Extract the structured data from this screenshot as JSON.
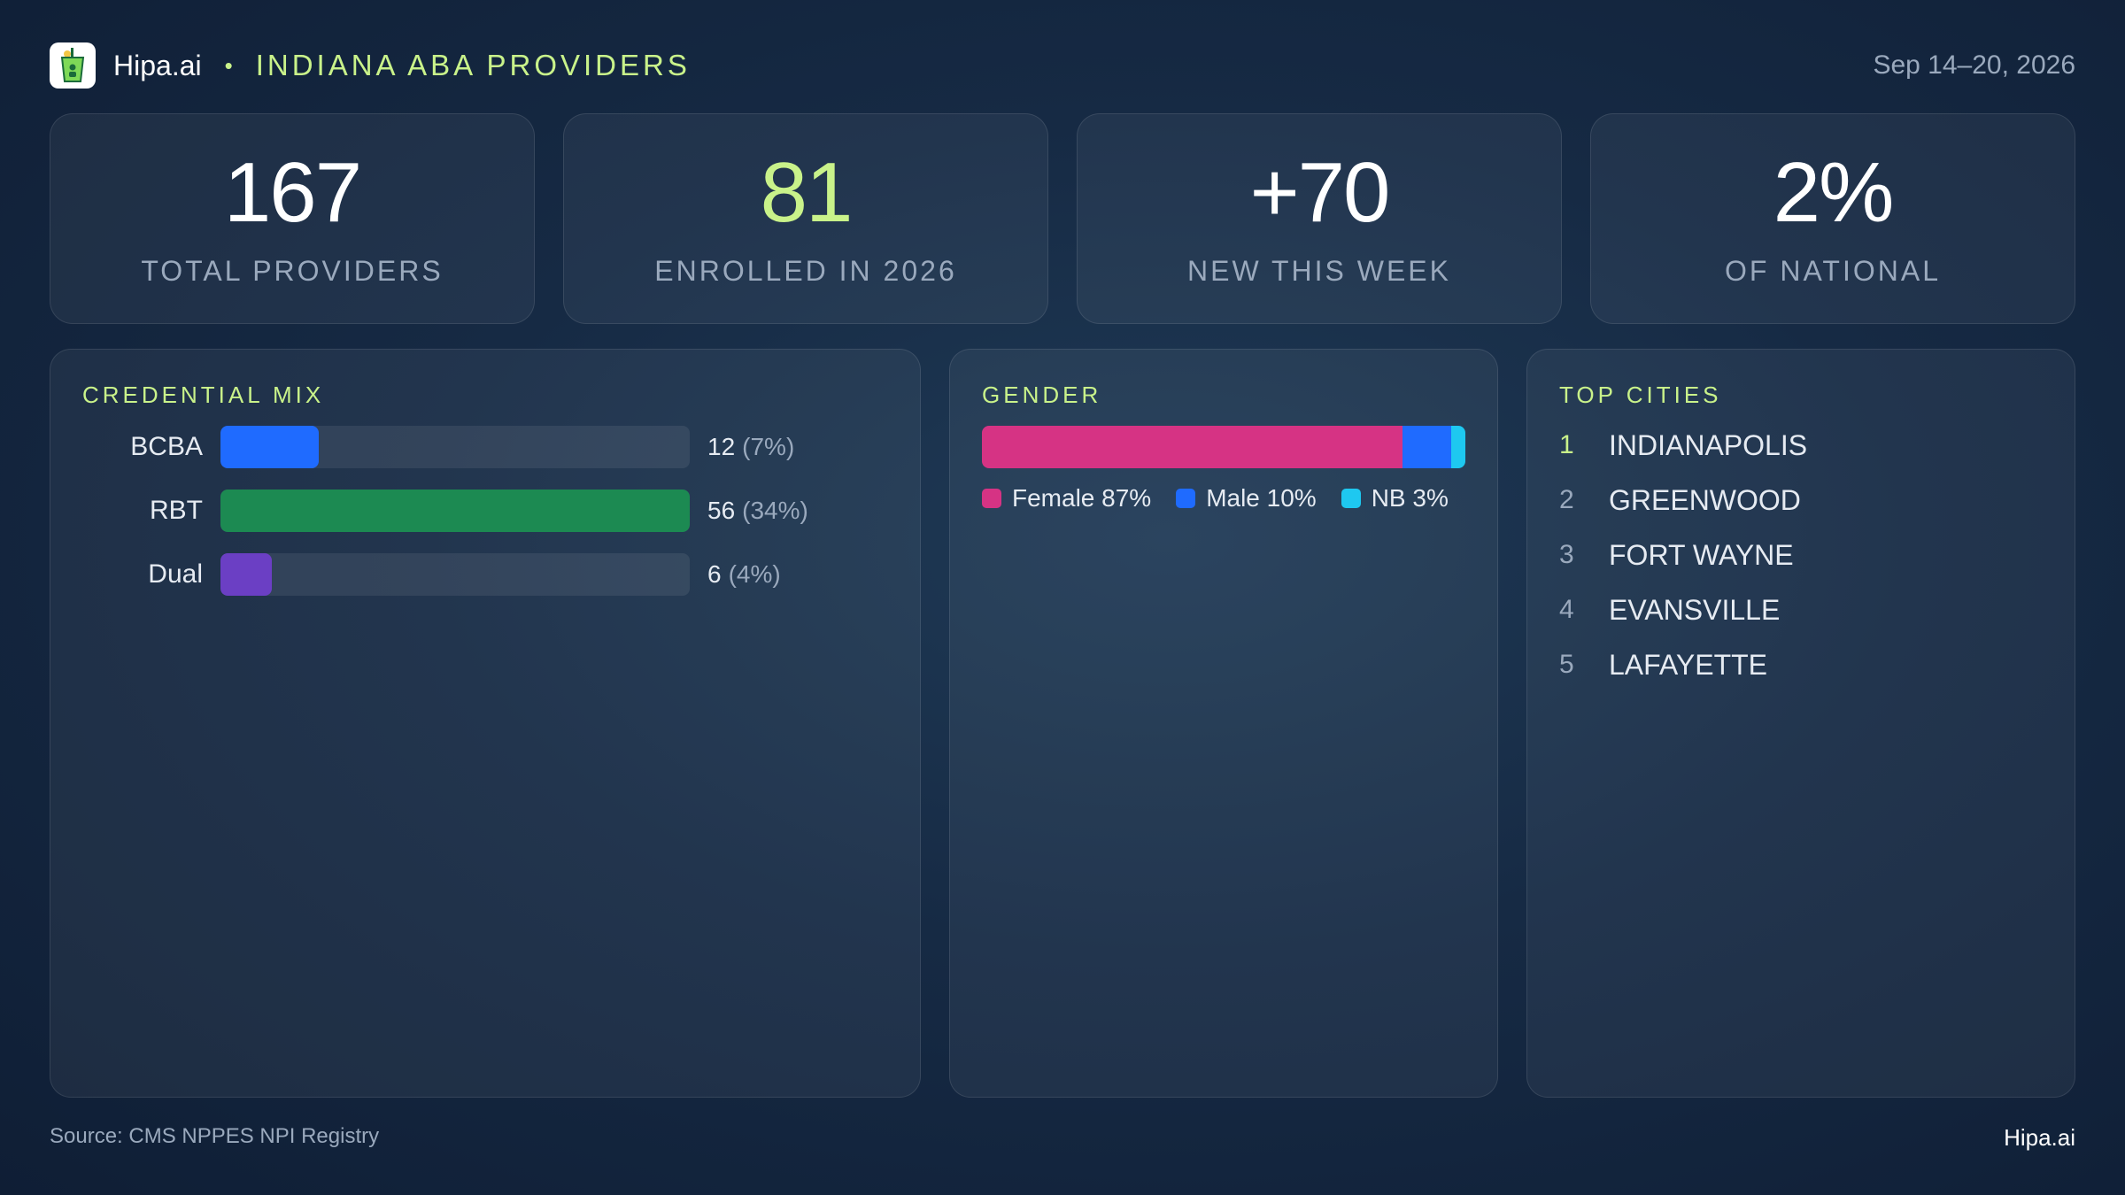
{
  "header": {
    "brand": "Hipa.ai",
    "separator": "•",
    "title": "INDIANA ABA PROVIDERS",
    "date_range": "Sep 14–20, 2026",
    "logo_icon": "drink-cup-icon"
  },
  "kpis": [
    {
      "value": "167",
      "label": "TOTAL PROVIDERS",
      "accent": false
    },
    {
      "value": "81",
      "label": "ENROLLED IN 2026",
      "accent": true
    },
    {
      "value": "+70",
      "label": "NEW THIS WEEK",
      "accent": false
    },
    {
      "value": "2%",
      "label": "OF NATIONAL",
      "accent": false
    }
  ],
  "credential_mix": {
    "title": "CREDENTIAL MIX",
    "items": [
      {
        "label": "BCBA",
        "count": "12",
        "pct": "(7%)",
        "share": 0.21,
        "color": "#1f6bff"
      },
      {
        "label": "RBT",
        "count": "56",
        "pct": "(34%)",
        "share": 1.0,
        "color": "#1c8a52"
      },
      {
        "label": "Dual",
        "count": "6",
        "pct": "(4%)",
        "share": 0.11,
        "color": "#6b3fc4"
      }
    ]
  },
  "gender": {
    "title": "GENDER",
    "segments": [
      {
        "label": "Female 87%",
        "percent": 87,
        "color": "#d63384"
      },
      {
        "label": "Male 10%",
        "percent": 10,
        "color": "#1f6bff"
      },
      {
        "label": "NB 3%",
        "percent": 3,
        "color": "#1ec8f0"
      }
    ]
  },
  "top_cities": {
    "title": "TOP CITIES",
    "items": [
      {
        "rank": "1",
        "name": "INDIANAPOLIS"
      },
      {
        "rank": "2",
        "name": "GREENWOOD"
      },
      {
        "rank": "3",
        "name": "FORT WAYNE"
      },
      {
        "rank": "4",
        "name": "EVANSVILLE"
      },
      {
        "rank": "5",
        "name": "LAFAYETTE"
      }
    ]
  },
  "footer": {
    "source": "Source: CMS NPPES NPI Registry",
    "brand": "Hipa.ai"
  }
}
